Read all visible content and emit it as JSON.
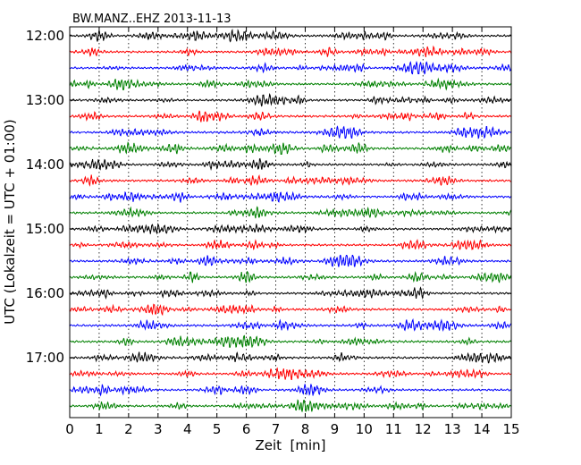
{
  "chart_data": {
    "type": "line",
    "title": "BW.MANZ..EHZ 2013-11-13",
    "xlabel": "Zeit  [min]",
    "ylabel": "UTC (Lokalzeit = UTC + 01:00)",
    "xlim": [
      0,
      15
    ],
    "x_ticks": [
      0,
      1,
      2,
      3,
      4,
      5,
      6,
      7,
      8,
      9,
      10,
      11,
      12,
      13,
      14,
      15
    ],
    "y_tick_labels": [
      "12:00",
      "13:00",
      "14:00",
      "15:00",
      "16:00",
      "17:00"
    ],
    "trace_start_times": [
      "12:00",
      "12:15",
      "12:30",
      "12:45",
      "13:00",
      "13:15",
      "13:30",
      "13:45",
      "14:00",
      "14:15",
      "14:30",
      "14:45",
      "15:00",
      "15:15",
      "15:30",
      "15:45",
      "16:00",
      "16:15",
      "16:30",
      "16:45",
      "17:00",
      "17:15",
      "17:30",
      "17:45"
    ],
    "trace_colors": [
      "#000000",
      "#ff0000",
      "#0000ff",
      "#008000"
    ],
    "grid": {
      "x": true,
      "y": false,
      "style": "dotted"
    },
    "notable_events": [
      {
        "trace": "12:00",
        "minutes": [
          4.3,
          5.9
        ]
      },
      {
        "trace": "13:45",
        "minutes": [
          1.9,
          9.8
        ]
      },
      {
        "trace": "14:30",
        "minutes": [
          2.1
        ]
      },
      {
        "trace": "15:45",
        "minutes": [
          11.8
        ]
      },
      {
        "trace": "17:45",
        "minutes": [
          1.2
        ]
      }
    ]
  }
}
